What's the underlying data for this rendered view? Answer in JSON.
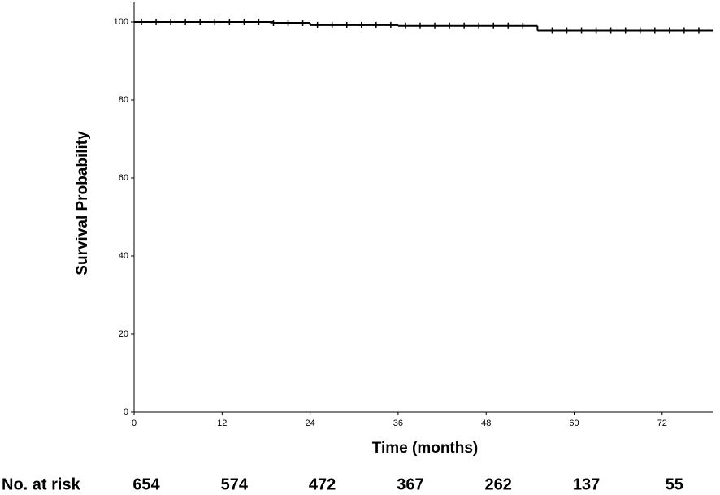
{
  "chart_data": {
    "type": "km",
    "x_label": "Time (months)",
    "y_label": "Survival Probability",
    "x": [
      0,
      19,
      24,
      36,
      55
    ],
    "values": [
      100,
      99.8,
      99.2,
      99.0,
      97.8
    ],
    "censored": {
      "x": [
        1,
        3,
        5,
        7,
        9,
        11,
        13,
        15,
        17,
        19,
        21,
        23,
        25,
        27,
        29,
        31,
        33,
        35,
        37,
        39,
        41,
        43,
        45,
        47,
        49,
        51,
        53,
        57,
        59,
        61,
        63,
        65,
        67,
        69,
        71,
        73,
        75,
        77
      ],
      "values": [
        100,
        100,
        100,
        100,
        100,
        100,
        100,
        100,
        100,
        99.8,
        99.8,
        99.8,
        99.2,
        99.2,
        99.2,
        99.2,
        99.2,
        99.2,
        99.0,
        99.0,
        99.0,
        99.0,
        99.0,
        99.0,
        99.0,
        99.0,
        99.0,
        97.8,
        97.8,
        97.8,
        97.8,
        97.8,
        97.8,
        97.8,
        97.8,
        97.8,
        97.8,
        97.8
      ]
    },
    "color": "#000000",
    "xlim": [
      0,
      79
    ],
    "ylim": [
      0,
      105
    ],
    "xticks": [
      0,
      12,
      24,
      36,
      48,
      60,
      72
    ],
    "yticks": [
      0,
      20,
      40,
      60,
      80,
      100
    ],
    "at_risk": {
      "label": "No. at risk",
      "values": [
        654,
        574,
        472,
        367,
        262,
        137,
        55
      ]
    }
  }
}
